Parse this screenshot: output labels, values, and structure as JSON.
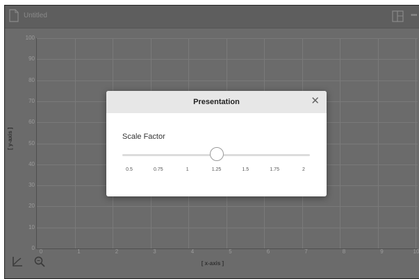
{
  "document": {
    "title": "Untitled"
  },
  "graph": {
    "x_axis_label": "[ x-axis ]",
    "y_axis_label": "[ y-axis ]",
    "x_ticks": [
      "0",
      "1",
      "2",
      "3",
      "4",
      "5",
      "6",
      "7",
      "8",
      "9",
      "10"
    ],
    "y_ticks": [
      "100",
      "90",
      "80",
      "70",
      "60",
      "50",
      "40",
      "30",
      "20",
      "10",
      "0"
    ]
  },
  "modal": {
    "title": "Presentation",
    "close_symbol": "✕",
    "scale_label": "Scale Factor",
    "slider": {
      "min": 0.5,
      "max": 2,
      "value": 1.25,
      "ticks": [
        "0.5",
        "0.75",
        "1",
        "1.25",
        "1.5",
        "1.75",
        "2"
      ]
    }
  },
  "icons": {
    "document": "document-icon",
    "panel": "panel-toggle-icon",
    "more": "more-icon",
    "chart": "chart-icon",
    "zoom": "zoom-icon"
  },
  "more_symbol": "•••"
}
